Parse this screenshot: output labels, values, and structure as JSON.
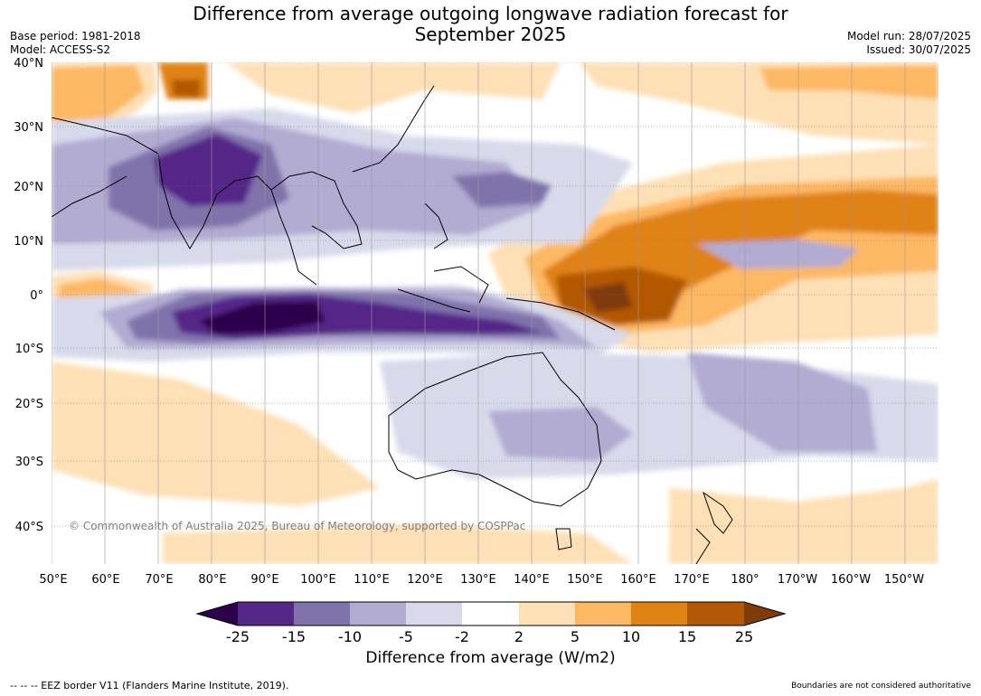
{
  "title": {
    "line1": "Difference from average outgoing longwave radiation forecast for",
    "line2": "September 2025"
  },
  "meta_left": {
    "base_period": "Base period: 1981-2018",
    "model": "Model: ACCESS-S2"
  },
  "meta_right": {
    "model_run": "Model run: 28/07/2025",
    "issued": "Issued: 30/07/2025"
  },
  "map": {
    "lat_labels": [
      "40°N",
      "30°N",
      "20°N",
      "10°N",
      "0°",
      "10°S",
      "20°S",
      "30°S",
      "40°S"
    ],
    "lon_labels": [
      "50°E",
      "60°E",
      "70°E",
      "80°E",
      "90°E",
      "100°E",
      "110°E",
      "120°E",
      "130°E",
      "140°E",
      "150°E",
      "160°E",
      "170°E",
      "180°",
      "170°W",
      "160°W",
      "150°W"
    ],
    "copyright": "© Commonwealth of Australia 2025, Bureau of Meteorology, supported by COSPPac"
  },
  "colorbar": {
    "title": "Difference from average (W/m2)",
    "ticks": [
      "-25",
      "-15",
      "-10",
      "-5",
      "-2",
      "2",
      "5",
      "10",
      "15",
      "25"
    ],
    "colors": [
      "#2d004b",
      "#542788",
      "#8073ac",
      "#b2abd2",
      "#d8daeb",
      "#ffffff",
      "#fee0b6",
      "#fdb863",
      "#e08214",
      "#b35806",
      "#7f3b08"
    ]
  },
  "footer": {
    "left": "--  --  -- EEZ border V11 (Flanders Marine Institute, 2019).",
    "right": "Boundaries are not considered authoritative"
  }
}
